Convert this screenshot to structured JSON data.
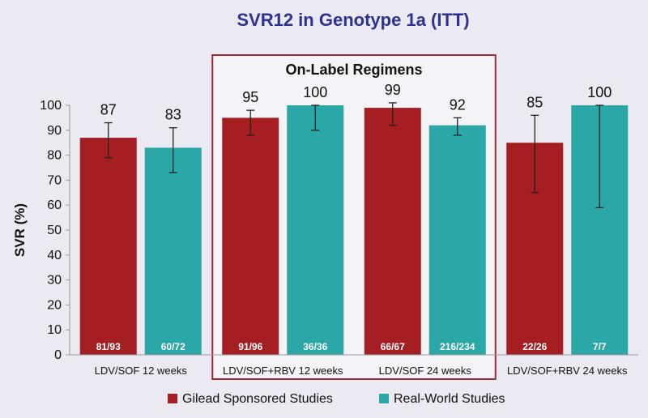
{
  "chart_data": {
    "type": "bar",
    "title": "SVR12 in Genotype 1a (ITT)",
    "ylabel": "SVR (%)",
    "xlabel": "",
    "ylim": [
      0,
      100
    ],
    "yticks": [
      0,
      10,
      20,
      30,
      40,
      50,
      60,
      70,
      80,
      90,
      100
    ],
    "grid": false,
    "legend_position": "bottom",
    "categories": [
      "LDV/SOF 12 weeks",
      "LDV/SOF+RBV 12 weeks",
      "LDV/SOF 24 weeks",
      "LDV/SOF+RBV 24 weeks"
    ],
    "highlight_box": {
      "label": "On-Label Regimens",
      "categories": [
        "LDV/SOF+RBV 12 weeks",
        "LDV/SOF 24 weeks"
      ],
      "color": "#9c2a34"
    },
    "series": [
      {
        "name": "Gilead Sponsored Studies",
        "color": "#a51e22",
        "values": [
          87,
          95,
          99,
          85
        ],
        "error_low": [
          79,
          88,
          92,
          65
        ],
        "error_high": [
          93,
          98,
          101,
          96
        ],
        "counts": [
          "81/93",
          "91/96",
          "66/67",
          "22/26"
        ]
      },
      {
        "name": "Real-World Studies",
        "color": "#2ba7a8",
        "values": [
          83,
          100,
          92,
          100
        ],
        "error_low": [
          73,
          90,
          88,
          59
        ],
        "error_high": [
          91,
          100,
          95,
          100
        ],
        "counts": [
          "60/72",
          "36/36",
          "216/234",
          "7/7"
        ]
      }
    ]
  }
}
